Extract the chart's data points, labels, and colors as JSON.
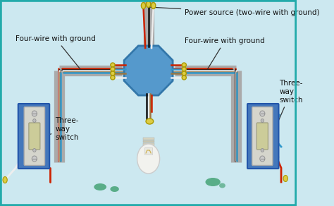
{
  "bg_color": "#cce8f0",
  "bg_inner": "#d8eef5",
  "border_color": "#22aaaa",
  "labels": {
    "power_source": "Power source (two-wire with ground)",
    "left_four_wire": "Four-wire with ground",
    "right_four_wire": "Four-wire with ground",
    "left_switch": "Three-\nway\nswitch",
    "right_switch": "Three-\nway\nswitch"
  },
  "wire_colors": {
    "red": "#cc2200",
    "black": "#111111",
    "white": "#eeeeee",
    "ground": "#997744",
    "blue": "#3399cc",
    "gray": "#aaaaaa",
    "dark_gray": "#888888"
  },
  "junction_box_color": "#5599cc",
  "junction_box_edge": "#3377aa",
  "switch_box_color": "#4477bb",
  "switch_box_edge": "#2255aa",
  "switch_plate_color": "#ddddcc",
  "switch_toggle_color": "#cccc99",
  "wire_cap_color": "#ddcc44",
  "wire_cap_edge": "#aa9900",
  "green_splotch": "#339966",
  "conduit_color": "#aaaaaa"
}
